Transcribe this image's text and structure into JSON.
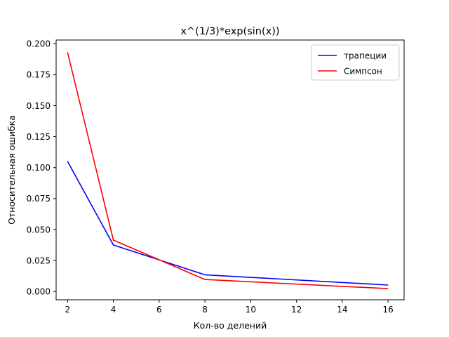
{
  "chart_data": {
    "type": "line",
    "title": "x^(1/3)*exp(sin(x))",
    "xlabel": "Кол-во делений",
    "ylabel": "Относительная ошибка",
    "xlim": [
      1.5,
      16.7
    ],
    "ylim": [
      -0.0067,
      0.203
    ],
    "xticks": [
      2,
      4,
      6,
      8,
      10,
      12,
      14,
      16
    ],
    "yticks": [
      0.0,
      0.025,
      0.05,
      0.075,
      0.1,
      0.125,
      0.15,
      0.175,
      0.2
    ],
    "ytick_labels": [
      "0.000",
      "0.025",
      "0.050",
      "0.075",
      "0.100",
      "0.125",
      "0.150",
      "0.175",
      "0.200"
    ],
    "grid": false,
    "legend_position": "top-right",
    "series": [
      {
        "name": "трапеции",
        "color": "#0000ff",
        "x": [
          2,
          4,
          8,
          16
        ],
        "y": [
          0.105,
          0.0375,
          0.0135,
          0.0052
        ]
      },
      {
        "name": "Симпсон",
        "color": "#ff0000",
        "x": [
          2,
          4,
          8,
          16
        ],
        "y": [
          0.193,
          0.0415,
          0.0097,
          0.0023
        ]
      }
    ]
  }
}
